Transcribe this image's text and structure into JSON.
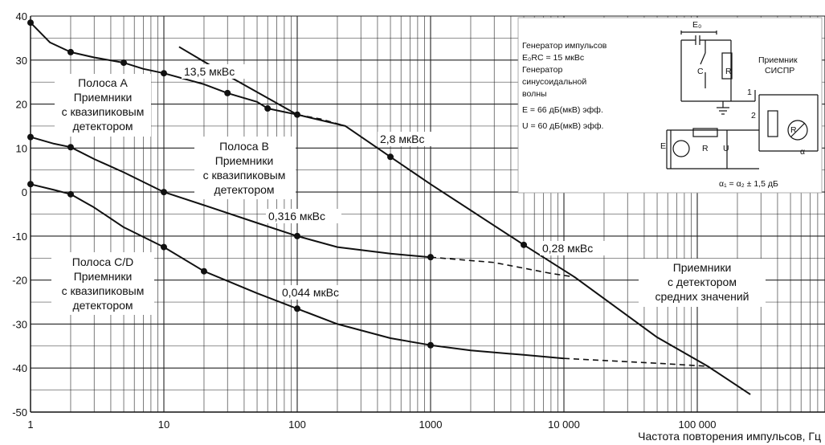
{
  "chart_data": {
    "type": "line",
    "title": "",
    "xlabel": "Частота повторения импульсов, Гц",
    "ylabel": "",
    "xscale": "log",
    "xlim": [
      1,
      300000
    ],
    "ylim": [
      -50,
      40
    ],
    "grid": true,
    "x_ticks": [
      1,
      10,
      100,
      1000,
      10000,
      100000
    ],
    "x_tick_labels": [
      "1",
      "10",
      "100",
      "1000",
      "10 000",
      "100 000"
    ],
    "y_ticks": [
      40,
      30,
      20,
      10,
      0,
      -10,
      -20,
      -30,
      -40,
      -50
    ],
    "y_tick_labels": [
      "40",
      "30",
      "20",
      "10",
      "0",
      "-10",
      "-20",
      "-30",
      "-40",
      "-50"
    ],
    "series": [
      {
        "points": [
          [
            1,
            38.5
          ],
          [
            1.4,
            34
          ],
          [
            2,
            31.8
          ],
          [
            3,
            30.6
          ],
          [
            5,
            29.4
          ],
          [
            7,
            28
          ],
          [
            10,
            27
          ],
          [
            20,
            24.5
          ],
          [
            30,
            22.5
          ],
          [
            50,
            20.5
          ],
          [
            60,
            19
          ],
          [
            80,
            18.2
          ],
          [
            100,
            17.6
          ]
        ],
        "markers": [
          [
            1,
            38.5
          ],
          [
            2,
            31.8
          ],
          [
            5,
            29.4
          ],
          [
            10,
            27
          ],
          [
            30,
            22.5
          ],
          [
            60,
            19
          ],
          [
            100,
            17.6
          ]
        ],
        "dashed": [
          [
            100,
            17.6
          ],
          [
            150,
            16.6
          ],
          [
            230,
            15
          ]
        ]
      },
      {
        "points": [
          [
            1,
            12.5
          ],
          [
            1.5,
            11
          ],
          [
            2,
            10.2
          ],
          [
            3,
            7.5
          ],
          [
            5,
            4.5
          ],
          [
            10,
            0
          ],
          [
            20,
            -3
          ],
          [
            50,
            -7
          ],
          [
            100,
            -10
          ],
          [
            200,
            -12.5
          ],
          [
            500,
            -14
          ],
          [
            1000,
            -14.8
          ]
        ],
        "markers": [
          [
            1,
            12.5
          ],
          [
            2,
            10.2
          ],
          [
            10,
            0
          ],
          [
            100,
            -10
          ],
          [
            1000,
            -14.8
          ]
        ],
        "dashed": [
          [
            1000,
            -14.8
          ],
          [
            3000,
            -16
          ],
          [
            8000,
            -18.5
          ],
          [
            12000,
            -19.3
          ]
        ]
      },
      {
        "points": [
          [
            1,
            1.8
          ],
          [
            1.5,
            0.5
          ],
          [
            2,
            -0.5
          ],
          [
            3,
            -3.5
          ],
          [
            5,
            -8
          ],
          [
            10,
            -12.5
          ],
          [
            20,
            -18
          ],
          [
            50,
            -23
          ],
          [
            100,
            -26.5
          ],
          [
            200,
            -30
          ],
          [
            500,
            -33.2
          ],
          [
            1000,
            -34.8
          ],
          [
            2000,
            -36
          ],
          [
            5000,
            -37
          ],
          [
            10000,
            -37.8
          ]
        ],
        "markers": [
          [
            1,
            1.8
          ],
          [
            2,
            -0.5
          ],
          [
            10,
            -12.5
          ],
          [
            20,
            -18
          ],
          [
            100,
            -26.5
          ],
          [
            1000,
            -34.8
          ]
        ],
        "dashed": [
          [
            10000,
            -37.8
          ],
          [
            50000,
            -38.9
          ],
          [
            120000,
            -39.6
          ]
        ]
      },
      {
        "points": [
          [
            13,
            33
          ],
          [
            30,
            26.5
          ],
          [
            100,
            17.6
          ],
          [
            230,
            15
          ],
          [
            500,
            8
          ],
          [
            1000,
            1.8
          ],
          [
            5000,
            -12
          ],
          [
            12000,
            -19.3
          ],
          [
            50000,
            -33
          ],
          [
            120000,
            -39.6
          ],
          [
            250000,
            -46
          ]
        ],
        "markers": [
          [
            500,
            8
          ],
          [
            5000,
            -12
          ]
        ]
      }
    ],
    "annotations": {
      "band_a": [
        "Полоса А",
        "Приемники",
        "с квазипиковым",
        "детектором"
      ],
      "band_b": [
        "Полоса В",
        "Приемники",
        "с квазипиковым",
        "детектором"
      ],
      "band_cd": [
        "Полоса С/D",
        "Приемники",
        "с квазипиковым",
        "детектором"
      ],
      "avg": [
        "Приемники",
        "с детектором",
        "средних значений"
      ],
      "lbl_135": "13,5 мкВс",
      "lbl_28": "2,8 мкВс",
      "lbl_0316": "0,316 мкВс",
      "lbl_028": "0,28 мкВс",
      "lbl_0044": "0,044 мкВс"
    },
    "inset": {
      "text_lines": [
        "Генератор импульсов",
        "E₀RC = 15 мкВс",
        "Генератор",
        "синусоидальной",
        "волны",
        "E = 66 дБ(мкВ) эфф.",
        "U = 60 дБ(мкВ) эфф."
      ],
      "receiver": [
        "Приемник",
        "СИСПР"
      ],
      "e0": "E₀",
      "c": "C",
      "r": "R",
      "e": "E",
      "u": "U",
      "alpha": "α",
      "n1": "1",
      "n2": "2",
      "formula": "α₁ = α₂ ± 1,5 дБ"
    }
  }
}
